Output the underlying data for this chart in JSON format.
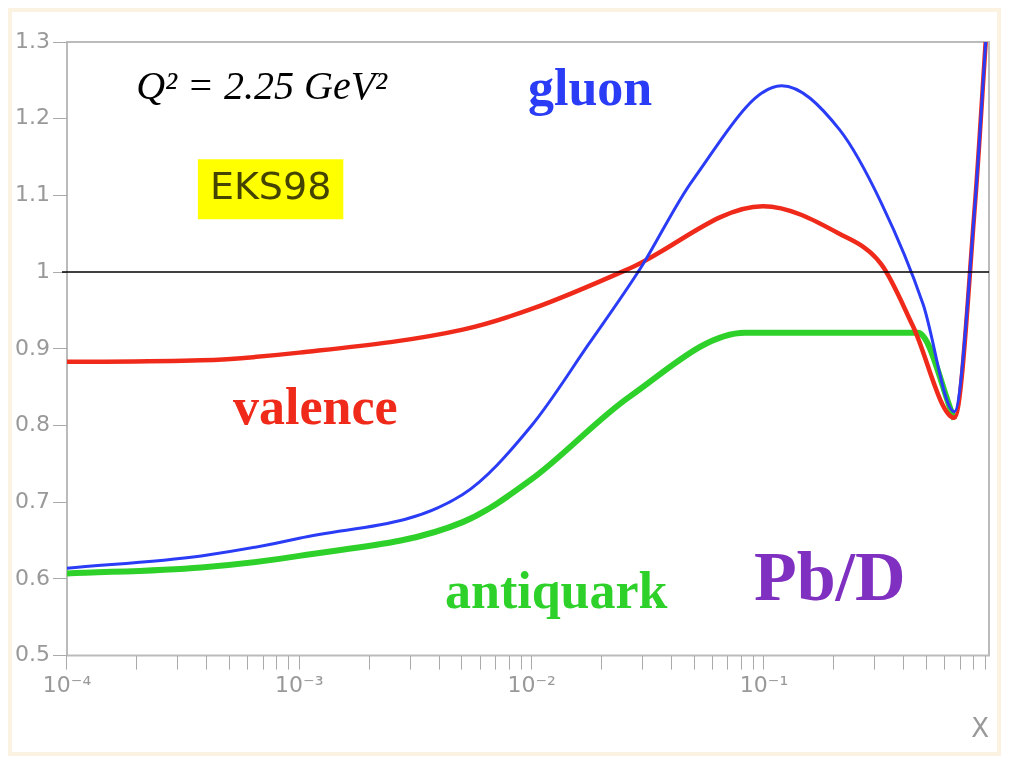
{
  "chart_data": {
    "type": "line",
    "xlabel": "X",
    "log": "x",
    "xlim": [
      0.0001,
      0.93
    ],
    "ylim": [
      0.5,
      1.3
    ],
    "xticks": [
      {
        "value": 0.0001,
        "label": "10⁻⁴"
      },
      {
        "value": 0.0002,
        "label": null
      },
      {
        "value": 0.0003,
        "label": null
      },
      {
        "value": 0.0004,
        "label": null
      },
      {
        "value": 0.0005,
        "label": null
      },
      {
        "value": 0.0006,
        "label": null
      },
      {
        "value": 0.0007,
        "label": null
      },
      {
        "value": 0.0008,
        "label": null
      },
      {
        "value": 0.0009,
        "label": null
      },
      {
        "value": 0.001,
        "label": "10⁻³"
      },
      {
        "value": 0.002,
        "label": null
      },
      {
        "value": 0.003,
        "label": null
      },
      {
        "value": 0.004,
        "label": null
      },
      {
        "value": 0.005,
        "label": null
      },
      {
        "value": 0.006,
        "label": null
      },
      {
        "value": 0.007,
        "label": null
      },
      {
        "value": 0.008,
        "label": null
      },
      {
        "value": 0.009,
        "label": null
      },
      {
        "value": 0.01,
        "label": "10⁻²"
      },
      {
        "value": 0.02,
        "label": null
      },
      {
        "value": 0.03,
        "label": null
      },
      {
        "value": 0.04,
        "label": null
      },
      {
        "value": 0.05,
        "label": null
      },
      {
        "value": 0.06,
        "label": null
      },
      {
        "value": 0.07,
        "label": null
      },
      {
        "value": 0.08,
        "label": null
      },
      {
        "value": 0.09,
        "label": null
      },
      {
        "value": 0.1,
        "label": "10⁻¹"
      },
      {
        "value": 0.2,
        "label": null
      },
      {
        "value": 0.3,
        "label": null
      },
      {
        "value": 0.4,
        "label": null
      },
      {
        "value": 0.5,
        "label": null
      },
      {
        "value": 0.6,
        "label": null
      },
      {
        "value": 0.7,
        "label": null
      },
      {
        "value": 0.8,
        "label": null
      },
      {
        "value": 0.9,
        "label": null
      }
    ],
    "yticks": [
      0.5,
      0.6,
      0.7,
      0.8,
      0.9,
      1,
      1.1,
      1.2,
      1.3
    ],
    "grid": false,
    "legend": false,
    "marker": "none",
    "line_style": "solid",
    "ref_lines": [
      {
        "axis": "y",
        "value": 1,
        "color": "#000000"
      }
    ],
    "annotations": [
      "Q² = 2.25 GeV²",
      "EKS98",
      "Pb/D"
    ],
    "series": [
      {
        "name": "gluon",
        "color": "#2a3cf5",
        "x": [
          0.0001,
          0.000378,
          0.001,
          0.00505,
          0.01,
          0.0175,
          0.0294,
          0.0494,
          0.119,
          0.211,
          0.32,
          0.484,
          0.66,
          0.81,
          0.9
        ],
        "values": [
          0.614,
          0.63,
          0.653,
          0.71,
          0.8,
          0.905,
          1.005,
          1.12,
          1.243,
          1.186,
          1.09,
          0.958,
          0.818,
          1.09,
          1.3
        ]
      },
      {
        "name": "valence",
        "color": "#f02a1a",
        "x": [
          0.0001,
          0.000378,
          0.001,
          0.00505,
          0.01,
          0.0265,
          0.099,
          0.211,
          0.32,
          0.437,
          0.66,
          0.81,
          0.9
        ],
        "values": [
          0.883,
          0.885,
          0.895,
          0.925,
          0.952,
          1.005,
          1.086,
          1.05,
          1.01,
          0.93,
          0.81,
          1.09,
          1.3
        ]
      },
      {
        "name": "antiquark",
        "color": "#2ed12a",
        "x": [
          0.0001,
          0.000378,
          0.001,
          0.00505,
          0.01,
          0.0265,
          0.083,
          0.46,
          0.66
        ],
        "values": [
          0.607,
          0.615,
          0.63,
          0.674,
          0.73,
          0.838,
          0.921,
          0.921,
          0.808
        ]
      }
    ]
  }
}
